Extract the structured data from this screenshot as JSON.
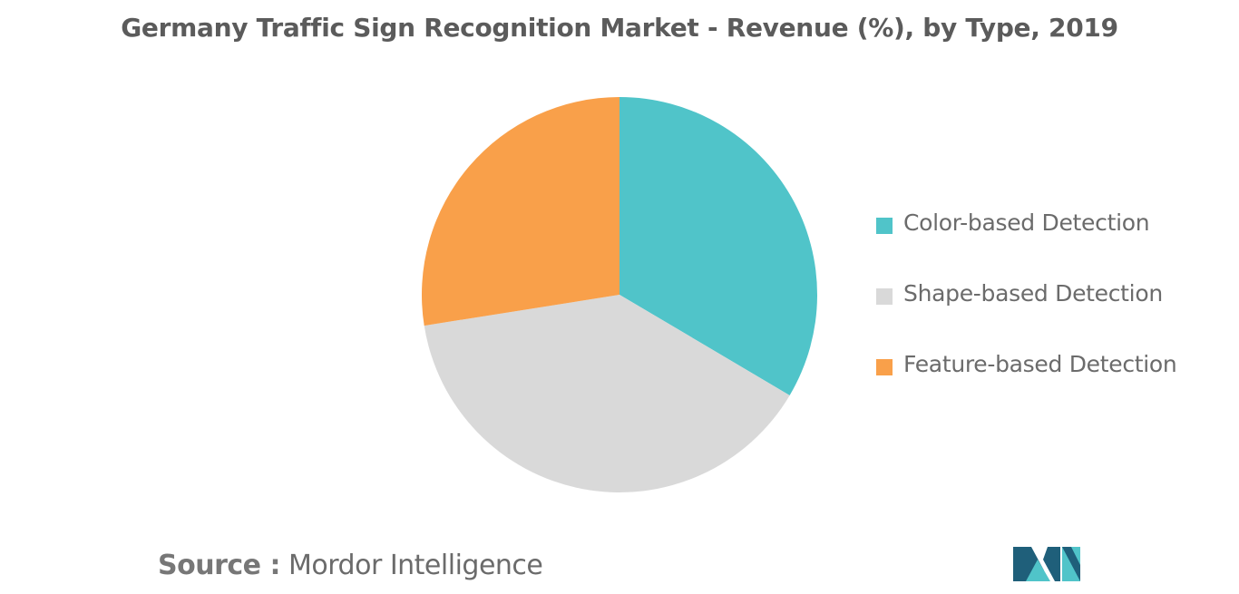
{
  "chart_data": {
    "type": "pie",
    "title": "Germany Traffic Sign Recognition Market - Revenue (%), by Type, 2019",
    "categories": [
      "Color-based Detection",
      "Shape-based Detection",
      "Feature-based Detection"
    ],
    "values": [
      33.5,
      39,
      27.5
    ],
    "colors": [
      "#50c4c9",
      "#d9d9d9",
      "#f9a04a"
    ],
    "legend_position": "right",
    "start_angle_deg": 0,
    "direction": "clockwise"
  },
  "source": {
    "prefix": "Source :",
    "text": "Mordor Intelligence"
  },
  "logo": {
    "icon": "mordor-intelligence-logo",
    "colors": [
      "#1f5f7a",
      "#50c4c9"
    ]
  }
}
